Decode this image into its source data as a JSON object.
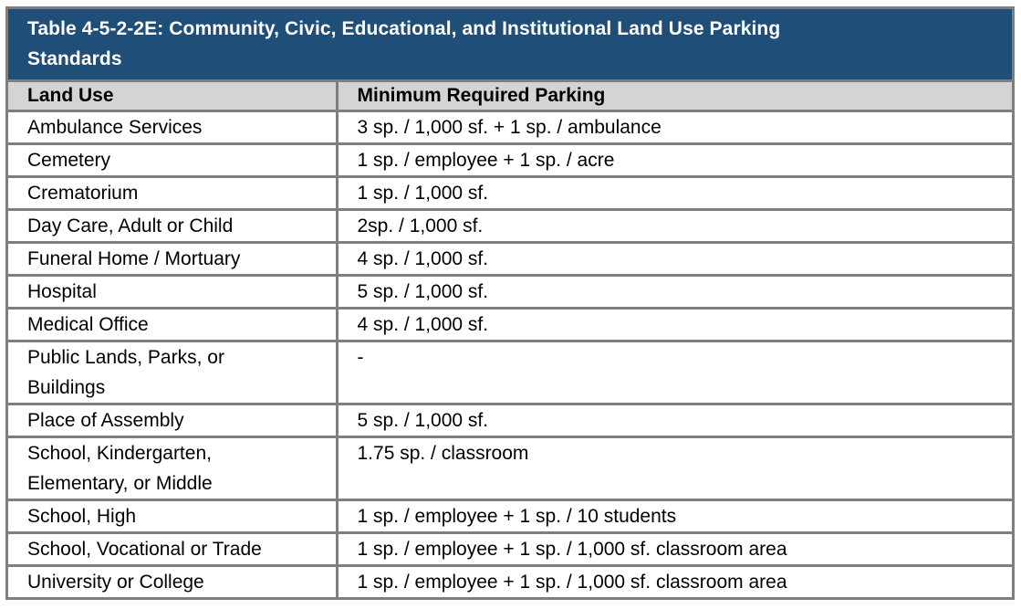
{
  "colors": {
    "title_bg": "#1F4E79",
    "title_text": "#FFFFFF",
    "header_bg": "#D4D4D4",
    "border": "#7F7F7F",
    "cell_text": "#000000",
    "page_bg": "#FFFFFF"
  },
  "table": {
    "title": "Table 4-5-2-2E:  Community, Civic, Educational, and Institutional Land Use Parking\nStandards",
    "columns": [
      "Land Use",
      "Minimum Required Parking"
    ],
    "rows": [
      {
        "land_use": "Ambulance Services",
        "parking": "3 sp. / 1,000 sf. + 1 sp. / ambulance"
      },
      {
        "land_use": "Cemetery",
        "parking": "1 sp. / employee + 1 sp. / acre"
      },
      {
        "land_use": "Crematorium",
        "parking": "1 sp. / 1,000 sf."
      },
      {
        "land_use": "Day Care, Adult or Child",
        "parking": "2sp. / 1,000 sf."
      },
      {
        "land_use": "Funeral Home / Mortuary",
        "parking": "4 sp. / 1,000 sf."
      },
      {
        "land_use": "Hospital",
        "parking": "5 sp. / 1,000 sf."
      },
      {
        "land_use": "Medical Office",
        "parking": "4 sp. / 1,000 sf."
      },
      {
        "land_use": "Public Lands, Parks, or\nBuildings",
        "parking": "-"
      },
      {
        "land_use": "Place of Assembly",
        "parking": "5 sp. / 1,000 sf."
      },
      {
        "land_use": "School, Kindergarten,\nElementary, or Middle",
        "parking": "1.75 sp. / classroom"
      },
      {
        "land_use": "School, High",
        "parking": "1 sp. / employee + 1 sp. / 10 students"
      },
      {
        "land_use": "School, Vocational or Trade",
        "parking": "1 sp. / employee + 1 sp. / 1,000 sf. classroom area"
      },
      {
        "land_use": "University or College",
        "parking": "1 sp. / employee + 1 sp. / 1,000 sf. classroom area"
      }
    ]
  }
}
